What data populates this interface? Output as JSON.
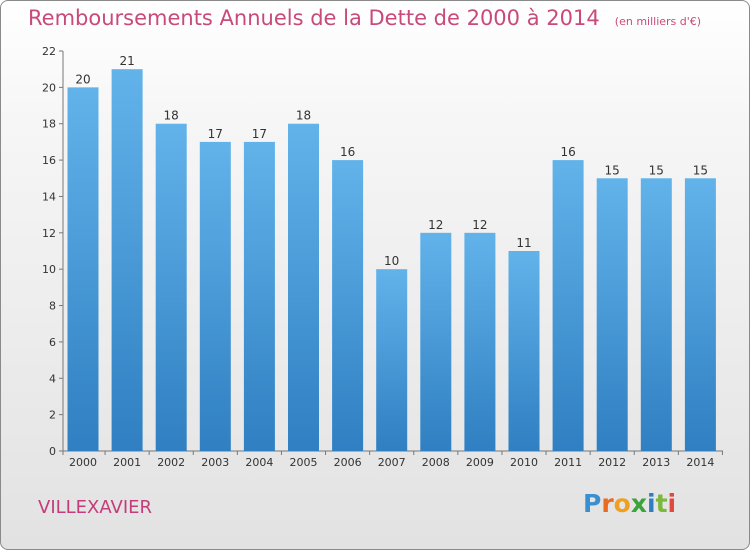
{
  "title": "Remboursements Annuels de la Dette de 2000 à 2014",
  "unit_note": "(en milliers d'€)",
  "town": "VILLEXAVIER",
  "logo": {
    "letters": [
      "P",
      "r",
      "o",
      "x",
      "i",
      "t",
      "i"
    ],
    "colors": [
      "#3a8fd0",
      "#e86b1f",
      "#f0a020",
      "#3aa33a",
      "#2f7fc0",
      "#7cb83a",
      "#e04a3a"
    ]
  },
  "colors": {
    "bar_top": "#62b3ea",
    "bar_bottom": "#2f7fc2",
    "text": "#333333",
    "grid": "#777777"
  },
  "chart_data": {
    "type": "bar",
    "categories": [
      "2000",
      "2001",
      "2002",
      "2003",
      "2004",
      "2005",
      "2006",
      "2007",
      "2008",
      "2009",
      "2010",
      "2011",
      "2012",
      "2013",
      "2014"
    ],
    "values": [
      20,
      21,
      18,
      17,
      17,
      18,
      16,
      10,
      12,
      12,
      11,
      16,
      15,
      15,
      15
    ],
    "ylim": [
      0,
      22
    ],
    "yticks": [
      0,
      2,
      4,
      6,
      8,
      10,
      12,
      14,
      16,
      18,
      20,
      22
    ],
    "grid": false
  }
}
